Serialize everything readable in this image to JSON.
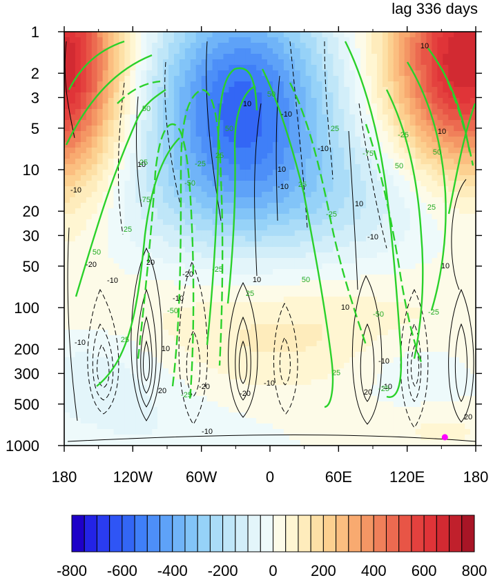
{
  "chart_data": {
    "type": "heatmap",
    "title": "lag 336 days",
    "xlabel": "",
    "ylabel": "",
    "x_axis": {
      "range": [
        -180,
        180
      ],
      "ticks": [
        -180,
        -120,
        -60,
        0,
        60,
        120,
        180
      ],
      "tick_labels": [
        "180",
        "120W",
        "60W",
        "0",
        "60E",
        "120E",
        "180"
      ]
    },
    "y_axis": {
      "scale": "log",
      "direction": "pressure-down",
      "range": [
        1,
        1000
      ],
      "ticks": [
        1,
        2,
        3,
        5,
        10,
        20,
        30,
        50,
        100,
        200,
        300,
        500,
        1000
      ],
      "tick_labels": [
        "1",
        "2",
        "3",
        "5",
        "10",
        "20",
        "30",
        "50",
        "100",
        "200",
        "300",
        "500",
        "1000"
      ]
    },
    "colorbar": {
      "levels": [
        -800,
        -750,
        -700,
        -650,
        -600,
        -550,
        -500,
        -450,
        -400,
        -350,
        -300,
        -250,
        -200,
        -150,
        -100,
        -50,
        0,
        50,
        100,
        150,
        200,
        250,
        300,
        350,
        400,
        450,
        500,
        550,
        600,
        650,
        700,
        750,
        800
      ],
      "colors": [
        "#1e00c8",
        "#2323e6",
        "#2a3cf0",
        "#2f55f5",
        "#3366f5",
        "#3f7ff8",
        "#4d8ff8",
        "#5ea2f8",
        "#70b4f8",
        "#82c4f8",
        "#96d2f8",
        "#aadcf8",
        "#bfe6f8",
        "#d2eef9",
        "#e3f5fa",
        "#eefafb",
        "#fdfbe8",
        "#fff6d2",
        "#feecbc",
        "#fde0a6",
        "#fcd090",
        "#fbbe80",
        "#f8aa70",
        "#f49664",
        "#f0805a",
        "#ec6a50",
        "#e85546",
        "#e4413e",
        "#e03438",
        "#d22a32",
        "#c0202c",
        "#a81526"
      ],
      "tick_labels": [
        "-800",
        "-600",
        "-400",
        "-200",
        "0",
        "200",
        "400",
        "600",
        "800"
      ]
    },
    "shading_anomalies": [
      {
        "lon": -25,
        "p": 3,
        "value": -520
      },
      {
        "lon": 165,
        "p": 1.5,
        "value": 680
      },
      {
        "lon": -175,
        "p": 2,
        "value": 480
      },
      {
        "lon": -150,
        "p": 300,
        "value": -90
      },
      {
        "lon": 120,
        "p": 300,
        "value": -80
      }
    ],
    "line_contours": {
      "color": "#000000",
      "levels_labeled": [
        -20,
        -10,
        10,
        20
      ],
      "negative_dashed": true
    },
    "green_contours": {
      "color": "#22cc22",
      "levels_labeled": [
        -75,
        -50,
        -25,
        25,
        50
      ],
      "negative_dashed": true
    },
    "marker": {
      "lon": 153,
      "p": 870,
      "color": "#ff00ff"
    }
  }
}
